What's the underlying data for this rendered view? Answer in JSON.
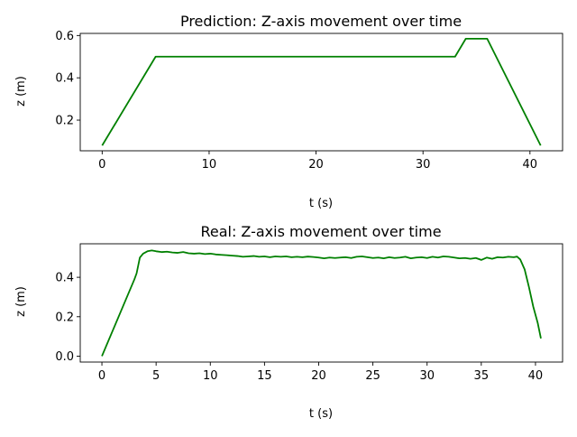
{
  "chart_data": [
    {
      "type": "line",
      "title": "Prediction: Z-axis movement over time",
      "xlabel": "t (s)",
      "ylabel": "z (m)",
      "xlim": [
        -2.05,
        43.05
      ],
      "ylim": [
        0.055,
        0.61
      ],
      "xticks": [
        0,
        10,
        20,
        30,
        40
      ],
      "yticks": [
        0.2,
        0.4,
        0.6
      ],
      "ytick_labels": [
        "0.2",
        "0.4",
        "0.6"
      ],
      "grid": false,
      "series": [
        {
          "color": "#008000",
          "x": [
            0,
            5,
            33,
            34,
            36,
            41
          ],
          "y": [
            0.08,
            0.5,
            0.5,
            0.585,
            0.585,
            0.08
          ]
        }
      ]
    },
    {
      "type": "line",
      "title": "Real: Z-axis movement over time",
      "xlabel": "t (s)",
      "ylabel": "z (m)",
      "xlim": [
        -2.0,
        42.5
      ],
      "ylim": [
        -0.03,
        0.57
      ],
      "xticks": [
        0,
        5,
        10,
        15,
        20,
        25,
        30,
        35,
        40
      ],
      "yticks": [
        0.0,
        0.2,
        0.4
      ],
      "ytick_labels": [
        "0.0",
        "0.2",
        "0.4"
      ],
      "grid": false,
      "series": [
        {
          "color": "#008000",
          "x": [
            0,
            1,
            2,
            3,
            3.2,
            3.5,
            3.8,
            4.2,
            4.6,
            5.0,
            5.5,
            6.0,
            6.5,
            7.0,
            7.5,
            8.0,
            8.5,
            9.0,
            9.5,
            10.0,
            10.5,
            11.0,
            11.5,
            12.0,
            12.5,
            13.0,
            13.5,
            14.0,
            14.5,
            15.0,
            15.5,
            16.0,
            16.5,
            17.0,
            17.5,
            18.0,
            18.5,
            19.0,
            19.5,
            20.0,
            20.5,
            21.0,
            21.5,
            22.0,
            22.5,
            23.0,
            23.5,
            24.0,
            24.5,
            25.0,
            25.5,
            26.0,
            26.5,
            27.0,
            27.5,
            28.0,
            28.5,
            29.0,
            29.5,
            30.0,
            30.5,
            31.0,
            31.5,
            32.0,
            32.5,
            33.0,
            33.5,
            34.0,
            34.5,
            35.0,
            35.5,
            36.0,
            36.5,
            37.0,
            37.5,
            38.0,
            38.3,
            38.6,
            39.0,
            39.4,
            39.8,
            40.2,
            40.5
          ],
          "y": [
            0.0,
            0.13,
            0.26,
            0.39,
            0.42,
            0.5,
            0.52,
            0.532,
            0.536,
            0.532,
            0.528,
            0.53,
            0.526,
            0.524,
            0.528,
            0.522,
            0.52,
            0.522,
            0.518,
            0.52,
            0.516,
            0.514,
            0.512,
            0.51,
            0.508,
            0.504,
            0.506,
            0.508,
            0.504,
            0.506,
            0.502,
            0.506,
            0.504,
            0.506,
            0.502,
            0.504,
            0.502,
            0.505,
            0.503,
            0.5,
            0.496,
            0.5,
            0.498,
            0.5,
            0.502,
            0.498,
            0.504,
            0.506,
            0.502,
            0.498,
            0.5,
            0.496,
            0.502,
            0.498,
            0.5,
            0.504,
            0.496,
            0.5,
            0.502,
            0.498,
            0.504,
            0.5,
            0.506,
            0.504,
            0.5,
            0.496,
            0.498,
            0.494,
            0.498,
            0.488,
            0.5,
            0.494,
            0.502,
            0.5,
            0.504,
            0.502,
            0.505,
            0.49,
            0.44,
            0.35,
            0.25,
            0.17,
            0.09
          ]
        }
      ]
    }
  ]
}
